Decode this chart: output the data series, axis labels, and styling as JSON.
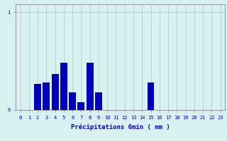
{
  "title": "",
  "xlabel": "Précipitations 6min ( mm )",
  "ylabel": "",
  "background_color": "#d8f0f0",
  "bar_color": "#0000bb",
  "grid_color": "#b0d0d0",
  "axis_color": "#888888",
  "text_color": "#0000bb",
  "xlim": [
    -0.5,
    23.5
  ],
  "ylim": [
    0,
    1.08
  ],
  "yticks": [
    0,
    1
  ],
  "xticks": [
    0,
    1,
    2,
    3,
    4,
    5,
    6,
    7,
    8,
    9,
    10,
    11,
    12,
    13,
    14,
    15,
    16,
    17,
    18,
    19,
    20,
    21,
    22,
    23
  ],
  "values": [
    0,
    0,
    0.27,
    0.28,
    0.37,
    0.48,
    0.18,
    0.08,
    0.48,
    0.18,
    0,
    0,
    0,
    0,
    0,
    0.28,
    0,
    0,
    0,
    0,
    0,
    0,
    0,
    0
  ],
  "bar_width": 0.8
}
